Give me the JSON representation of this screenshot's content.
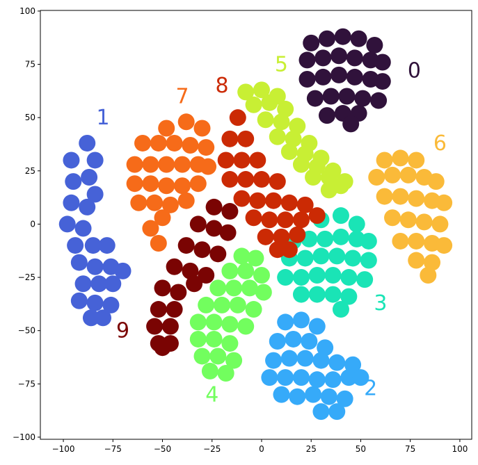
{
  "chart_data": {
    "type": "scatter",
    "xlim": [
      -111.6,
      106
    ],
    "ylim": [
      -101,
      100.3
    ],
    "xticks": [
      {
        "value": -100,
        "label": "−100"
      },
      {
        "value": -75,
        "label": "−75"
      },
      {
        "value": -50,
        "label": "−50"
      },
      {
        "value": -25,
        "label": "−25"
      },
      0,
      25,
      50,
      75,
      100
    ],
    "yticks": [
      {
        "value": -100,
        "label": "−100"
      },
      {
        "value": -75,
        "label": "−75"
      },
      {
        "value": -50,
        "label": "−50"
      },
      {
        "value": -25,
        "label": "−25"
      },
      0,
      25,
      50,
      75,
      100
    ],
    "grid": false,
    "series": [
      {
        "name": "0",
        "color": "#30123b",
        "x": [
          25,
          33,
          41,
          49,
          57,
          23,
          31,
          39,
          47,
          55,
          61,
          23,
          31,
          39,
          47,
          55,
          61,
          27,
          35,
          43,
          51,
          59,
          33,
          41,
          49,
          45
        ],
        "y": [
          85,
          87,
          88,
          87,
          84,
          77,
          78,
          79,
          78,
          77,
          76,
          68,
          69,
          70,
          69,
          68,
          67,
          59,
          60,
          60,
          59,
          58,
          51,
          52,
          52,
          47
        ]
      },
      {
        "name": "1",
        "color": "#4662d7",
        "x": [
          -96,
          -88,
          -84,
          -95,
          -87,
          -84,
          -96,
          -88,
          -98,
          -90,
          -94,
          -85,
          -78,
          -92,
          -84,
          -76,
          -70,
          -90,
          -82,
          -75,
          -92,
          -84,
          -76,
          -86,
          -80
        ],
        "y": [
          30,
          38,
          30,
          20,
          22,
          14,
          10,
          8,
          0,
          -2,
          -10,
          -10,
          -10,
          -18,
          -20,
          -20,
          -22,
          -28,
          -28,
          -28,
          -36,
          -37,
          -38,
          -44,
          -44
        ]
      },
      {
        "name": "2",
        "color": "#36aaf9",
        "x": [
          12,
          20,
          28,
          8,
          16,
          24,
          32,
          6,
          14,
          22,
          30,
          38,
          46,
          4,
          12,
          20,
          28,
          36,
          44,
          50,
          10,
          18,
          26,
          34,
          42,
          30,
          38
        ],
        "y": [
          -46,
          -45,
          -48,
          -55,
          -54,
          -55,
          -58,
          -64,
          -63,
          -63,
          -64,
          -65,
          -66,
          -72,
          -72,
          -72,
          -73,
          -73,
          -72,
          -72,
          -80,
          -81,
          -80,
          -81,
          -82,
          -88,
          -88
        ]
      },
      {
        "name": "3",
        "color": "#1ae4b6",
        "x": [
          30,
          40,
          48,
          16,
          24,
          32,
          40,
          48,
          54,
          14,
          22,
          30,
          38,
          46,
          54,
          12,
          20,
          28,
          36,
          44,
          52,
          20,
          28,
          36,
          44,
          40
        ],
        "y": [
          2,
          4,
          0,
          -8,
          -7,
          -7,
          -6,
          -7,
          -8,
          -16,
          -16,
          -15,
          -15,
          -16,
          -17,
          -25,
          -25,
          -24,
          -24,
          -25,
          -26,
          -33,
          -33,
          -33,
          -34,
          -40
        ]
      },
      {
        "name": "4",
        "color": "#72fe5e",
        "x": [
          -10,
          -3,
          -16,
          -8,
          0,
          -22,
          -14,
          -6,
          1,
          -28,
          -20,
          -12,
          -4,
          -32,
          -24,
          -16,
          -8,
          -32,
          -24,
          -16,
          -30,
          -22,
          -14,
          -26,
          -18
        ],
        "y": [
          -15,
          -16,
          -22,
          -22,
          -24,
          -30,
          -30,
          -30,
          -32,
          -38,
          -38,
          -38,
          -40,
          -46,
          -46,
          -47,
          -48,
          -54,
          -54,
          -56,
          -62,
          -62,
          -64,
          -69,
          -70
        ]
      },
      {
        "name": "5",
        "color": "#c8ef34",
        "x": [
          -8,
          0,
          8,
          -4,
          4,
          12,
          2,
          10,
          18,
          8,
          16,
          24,
          14,
          22,
          30,
          20,
          28,
          36,
          26,
          34,
          42,
          34,
          40
        ],
        "y": [
          62,
          63,
          60,
          56,
          57,
          54,
          49,
          48,
          46,
          41,
          40,
          38,
          34,
          33,
          31,
          28,
          27,
          25,
          22,
          22,
          20,
          16,
          18
        ]
      },
      {
        "name": "6",
        "color": "#faba39",
        "x": [
          62,
          70,
          78,
          58,
          66,
          74,
          82,
          88,
          62,
          70,
          78,
          86,
          92,
          66,
          74,
          82,
          90,
          70,
          78,
          86,
          92,
          78,
          86,
          84
        ],
        "y": [
          30,
          31,
          30,
          22,
          23,
          23,
          22,
          20,
          13,
          13,
          12,
          11,
          10,
          3,
          2,
          1,
          0,
          -8,
          -8,
          -9,
          -10,
          -17,
          -18,
          -24
        ]
      },
      {
        "name": "7",
        "color": "#f66b19",
        "x": [
          -48,
          -38,
          -30,
          -60,
          -52,
          -44,
          -36,
          -28,
          -64,
          -56,
          -48,
          -40,
          -32,
          -27,
          -64,
          -56,
          -48,
          -40,
          -32,
          -62,
          -54,
          -46,
          -38,
          -50,
          -56,
          -52
        ],
        "y": [
          45,
          48,
          45,
          38,
          38,
          38,
          37,
          36,
          28,
          28,
          28,
          28,
          28,
          27,
          19,
          19,
          18,
          18,
          19,
          10,
          10,
          9,
          11,
          3,
          -2,
          -9
        ]
      },
      {
        "name": "8",
        "color": "#cb2a04",
        "x": [
          -12,
          -16,
          -8,
          -18,
          -10,
          -2,
          -16,
          -8,
          0,
          8,
          -10,
          -2,
          6,
          14,
          22,
          -4,
          4,
          12,
          20,
          28,
          2,
          10,
          18,
          8,
          14
        ],
        "y": [
          50,
          40,
          40,
          30,
          30,
          30,
          21,
          21,
          21,
          20,
          12,
          11,
          11,
          10,
          9,
          3,
          2,
          2,
          2,
          4,
          -6,
          -6,
          -5,
          -12,
          -12
        ]
      },
      {
        "name": "9",
        "color": "#7a0403",
        "x": [
          -24,
          -16,
          -32,
          -24,
          -17,
          -38,
          -30,
          -22,
          -44,
          -36,
          -28,
          -50,
          -42,
          -34,
          -52,
          -44,
          -54,
          -46,
          -52,
          -46,
          -50
        ],
        "y": [
          8,
          6,
          0,
          -2,
          -4,
          -10,
          -12,
          -14,
          -20,
          -22,
          -24,
          -30,
          -32,
          -28,
          -40,
          -40,
          -48,
          -48,
          -56,
          -56,
          -58
        ]
      }
    ]
  }
}
